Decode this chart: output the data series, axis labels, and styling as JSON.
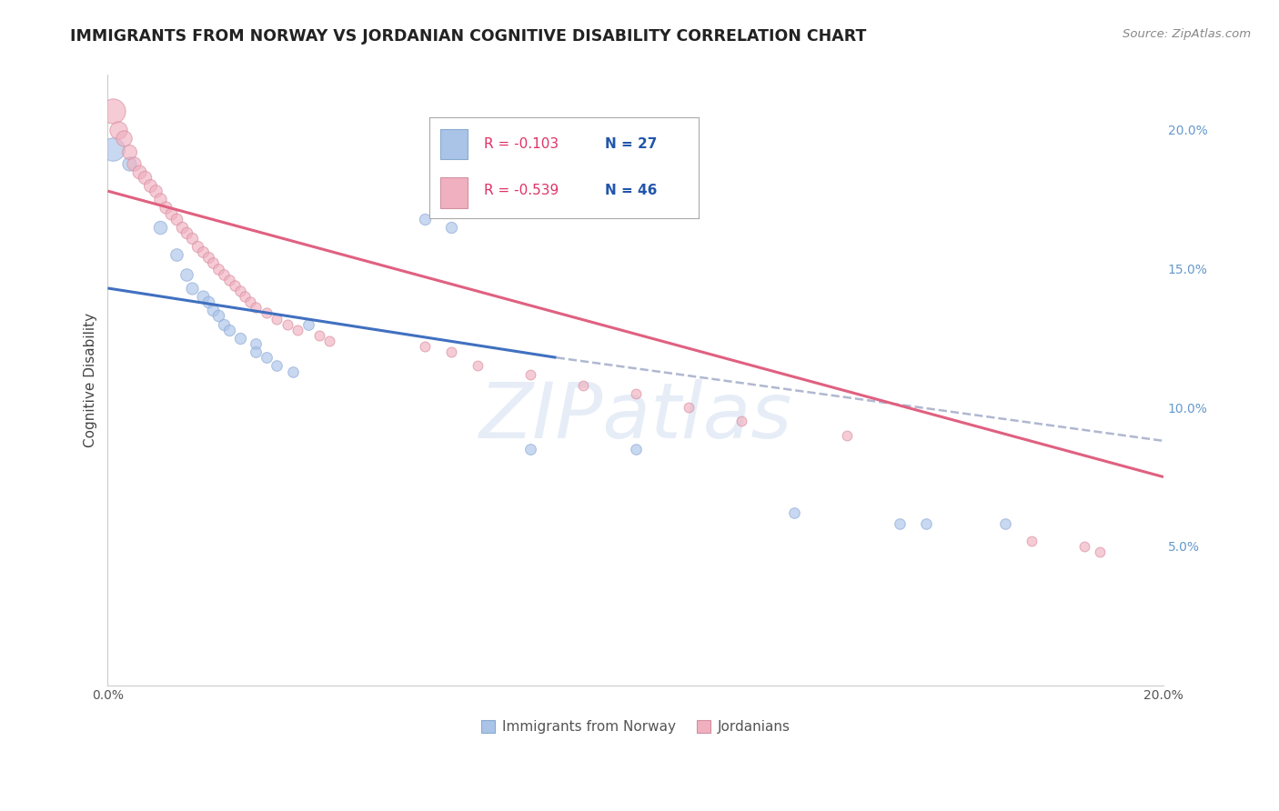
{
  "title": "IMMIGRANTS FROM NORWAY VS JORDANIAN COGNITIVE DISABILITY CORRELATION CHART",
  "source": "Source: ZipAtlas.com",
  "ylabel": "Cognitive Disability",
  "right_yticks": [
    0.0,
    0.05,
    0.1,
    0.15,
    0.2
  ],
  "right_yticklabels": [
    "",
    "5.0%",
    "10.0%",
    "15.0%",
    "20.0%"
  ],
  "xlim": [
    0.0,
    0.2
  ],
  "ylim": [
    0.0,
    0.22
  ],
  "watermark": "ZIPatlas",
  "legend_blue_R": "R = -0.103",
  "legend_blue_N": "N = 27",
  "legend_pink_R": "R = -0.539",
  "legend_pink_N": "N = 46",
  "blue_color": "#aac4e8",
  "pink_color": "#f0b0c0",
  "blue_line_color": "#4070c0",
  "pink_line_color": "#e06080",
  "dashed_line_color": "#b0b8d0",
  "norway_points": [
    [
      0.001,
      0.193,
      280
    ],
    [
      0.004,
      0.188,
      100
    ],
    [
      0.01,
      0.165,
      90
    ],
    [
      0.013,
      0.155,
      80
    ],
    [
      0.015,
      0.148,
      80
    ],
    [
      0.016,
      0.143,
      75
    ],
    [
      0.018,
      0.14,
      75
    ],
    [
      0.019,
      0.138,
      70
    ],
    [
      0.02,
      0.135,
      70
    ],
    [
      0.021,
      0.133,
      68
    ],
    [
      0.022,
      0.13,
      65
    ],
    [
      0.023,
      0.128,
      65
    ],
    [
      0.025,
      0.125,
      65
    ],
    [
      0.028,
      0.123,
      60
    ],
    [
      0.028,
      0.12,
      60
    ],
    [
      0.03,
      0.118,
      60
    ],
    [
      0.032,
      0.115,
      58
    ],
    [
      0.035,
      0.113,
      58
    ],
    [
      0.038,
      0.13,
      60
    ],
    [
      0.06,
      0.168,
      65
    ],
    [
      0.065,
      0.165,
      65
    ],
    [
      0.08,
      0.085,
      60
    ],
    [
      0.1,
      0.085,
      58
    ],
    [
      0.13,
      0.062,
      58
    ],
    [
      0.15,
      0.058,
      58
    ],
    [
      0.155,
      0.058,
      58
    ],
    [
      0.17,
      0.058,
      58
    ]
  ],
  "jordan_points": [
    [
      0.001,
      0.207,
      320
    ],
    [
      0.002,
      0.2,
      160
    ],
    [
      0.003,
      0.197,
      130
    ],
    [
      0.004,
      0.192,
      110
    ],
    [
      0.005,
      0.188,
      100
    ],
    [
      0.006,
      0.185,
      95
    ],
    [
      0.007,
      0.183,
      90
    ],
    [
      0.008,
      0.18,
      85
    ],
    [
      0.009,
      0.178,
      80
    ],
    [
      0.01,
      0.175,
      78
    ],
    [
      0.011,
      0.172,
      75
    ],
    [
      0.012,
      0.17,
      73
    ],
    [
      0.013,
      0.168,
      70
    ],
    [
      0.014,
      0.165,
      68
    ],
    [
      0.015,
      0.163,
      67
    ],
    [
      0.016,
      0.161,
      65
    ],
    [
      0.017,
      0.158,
      65
    ],
    [
      0.018,
      0.156,
      63
    ],
    [
      0.019,
      0.154,
      62
    ],
    [
      0.02,
      0.152,
      60
    ],
    [
      0.021,
      0.15,
      60
    ],
    [
      0.022,
      0.148,
      58
    ],
    [
      0.023,
      0.146,
      58
    ],
    [
      0.024,
      0.144,
      57
    ],
    [
      0.025,
      0.142,
      57
    ],
    [
      0.026,
      0.14,
      56
    ],
    [
      0.027,
      0.138,
      55
    ],
    [
      0.028,
      0.136,
      55
    ],
    [
      0.03,
      0.134,
      54
    ],
    [
      0.032,
      0.132,
      53
    ],
    [
      0.034,
      0.13,
      53
    ],
    [
      0.036,
      0.128,
      52
    ],
    [
      0.04,
      0.126,
      52
    ],
    [
      0.042,
      0.124,
      52
    ],
    [
      0.06,
      0.122,
      52
    ],
    [
      0.065,
      0.12,
      52
    ],
    [
      0.07,
      0.115,
      50
    ],
    [
      0.08,
      0.112,
      50
    ],
    [
      0.09,
      0.108,
      50
    ],
    [
      0.1,
      0.105,
      50
    ],
    [
      0.11,
      0.1,
      50
    ],
    [
      0.12,
      0.095,
      50
    ],
    [
      0.14,
      0.09,
      50
    ],
    [
      0.175,
      0.052,
      50
    ],
    [
      0.185,
      0.05,
      50
    ],
    [
      0.188,
      0.048,
      50
    ]
  ],
  "blue_line_solid": {
    "x0": 0.0,
    "y0": 0.143,
    "x1": 0.085,
    "y1": 0.118
  },
  "blue_line_dashed": {
    "x0": 0.085,
    "y0": 0.118,
    "x1": 0.2,
    "y1": 0.088
  },
  "pink_line": {
    "x0": 0.0,
    "y0": 0.178,
    "x1": 0.2,
    "y1": 0.075
  }
}
